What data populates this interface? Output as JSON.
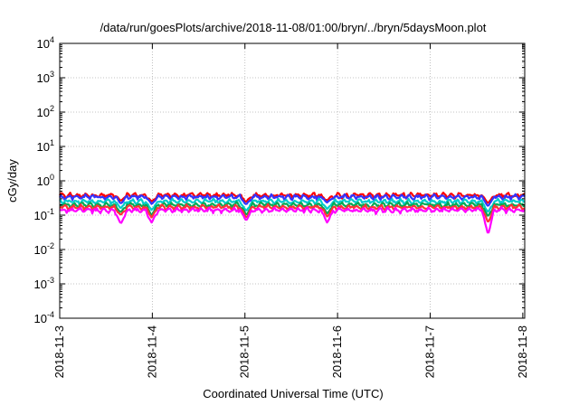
{
  "chart_data": {
    "type": "line",
    "title": "/data/run/goesPlots/archive/2018-11-08/01:00/bryn/../bryn/5daysMoon.plot",
    "xlabel": "Coordinated Universal Time (UTC)",
    "ylabel": "cGy/day",
    "yscale": "log",
    "ylim": [
      0.0001,
      10000
    ],
    "y_ticks": [
      {
        "value": 0.0001,
        "base": "10",
        "exp": "-4"
      },
      {
        "value": 0.001,
        "base": "10",
        "exp": "-3"
      },
      {
        "value": 0.01,
        "base": "10",
        "exp": "-2"
      },
      {
        "value": 0.1,
        "base": "10",
        "exp": "-1"
      },
      {
        "value": 1,
        "base": "10",
        "exp": "0"
      },
      {
        "value": 10,
        "base": "10",
        "exp": "1"
      },
      {
        "value": 100,
        "base": "10",
        "exp": "2"
      },
      {
        "value": 1000,
        "base": "10",
        "exp": "3"
      },
      {
        "value": 10000,
        "base": "10",
        "exp": "4"
      }
    ],
    "xlim": [
      "2018-11-03 00:00",
      "2018-11-08 00:30"
    ],
    "x_ticks": [
      {
        "value": "2018-11-03 00:00",
        "label": "2018-11-3"
      },
      {
        "value": "2018-11-04 00:00",
        "label": "2018-11-4"
      },
      {
        "value": "2018-11-05 00:00",
        "label": "2018-11-5"
      },
      {
        "value": "2018-11-06 00:00",
        "label": "2018-11-6"
      },
      {
        "value": "2018-11-07 00:00",
        "label": "2018-11-7"
      },
      {
        "value": "2018-11-08 00:00",
        "label": "2018-11-8"
      }
    ],
    "grid": true,
    "legend": "none",
    "series": [
      {
        "color": "#ff0000",
        "baseline": 0.38,
        "dips": [
          {
            "x": "2018-11-03 15:50",
            "y": 0.26
          },
          {
            "x": "2018-11-03 23:50",
            "y": 0.25
          },
          {
            "x": "2018-11-05 00:20",
            "y": 0.24
          },
          {
            "x": "2018-11-05 21:20",
            "y": 0.27
          },
          {
            "x": "2018-11-07 15:00",
            "y": 0.22
          }
        ]
      },
      {
        "color": "#3333ff",
        "baseline": 0.34,
        "dips": [
          {
            "x": "2018-11-03 15:50",
            "y": 0.22
          },
          {
            "x": "2018-11-03 23:50",
            "y": 0.21
          },
          {
            "x": "2018-11-05 00:20",
            "y": 0.2
          },
          {
            "x": "2018-11-05 21:20",
            "y": 0.23
          },
          {
            "x": "2018-11-07 15:00",
            "y": 0.18
          }
        ]
      },
      {
        "color": "#00cccc",
        "baseline": 0.25,
        "dips": [
          {
            "x": "2018-11-03 15:50",
            "y": 0.16
          },
          {
            "x": "2018-11-03 23:50",
            "y": 0.14
          },
          {
            "x": "2018-11-05 00:20",
            "y": 0.13
          },
          {
            "x": "2018-11-05 21:20",
            "y": 0.15
          },
          {
            "x": "2018-11-07 15:00",
            "y": 0.12
          }
        ]
      },
      {
        "color": "#00aa55",
        "baseline": 0.2,
        "dips": [
          {
            "x": "2018-11-03 15:50",
            "y": 0.12
          },
          {
            "x": "2018-11-03 23:50",
            "y": 0.1
          },
          {
            "x": "2018-11-05 00:20",
            "y": 0.1
          },
          {
            "x": "2018-11-05 21:20",
            "y": 0.11
          },
          {
            "x": "2018-11-07 15:00",
            "y": 0.09
          }
        ]
      },
      {
        "color": "#ff3333",
        "baseline": 0.17,
        "dips": [
          {
            "x": "2018-11-03 15:50",
            "y": 0.1
          },
          {
            "x": "2018-11-03 23:50",
            "y": 0.085
          },
          {
            "x": "2018-11-05 00:20",
            "y": 0.085
          },
          {
            "x": "2018-11-05 21:20",
            "y": 0.09
          },
          {
            "x": "2018-11-07 15:00",
            "y": 0.06
          }
        ]
      },
      {
        "color": "#ff00ff",
        "baseline": 0.14,
        "dips": [
          {
            "x": "2018-11-03 15:50",
            "y": 0.055
          },
          {
            "x": "2018-11-03 23:50",
            "y": 0.06
          },
          {
            "x": "2018-11-05 00:20",
            "y": 0.07
          },
          {
            "x": "2018-11-05 21:20",
            "y": 0.06
          },
          {
            "x": "2018-11-07 15:00",
            "y": 0.027
          }
        ]
      }
    ]
  }
}
